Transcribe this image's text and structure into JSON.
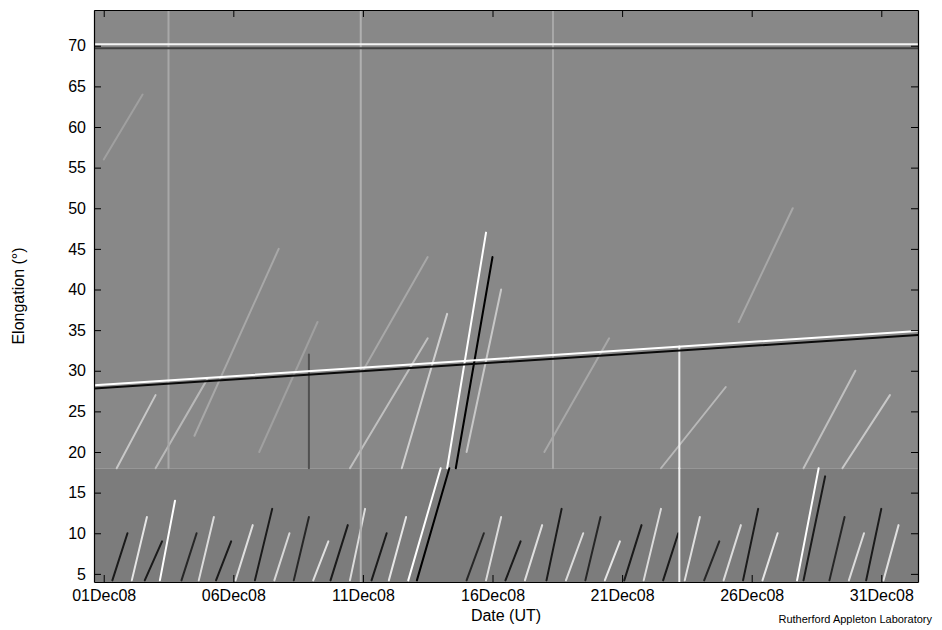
{
  "chart_data": {
    "type": "line",
    "x_label": "Date (UT)",
    "y_label": "Elongation (°)",
    "credit": "Rutherford Appleton Laboratory",
    "xlim": [
      "2008-11-30T15:00",
      "2009-01-01T10:00"
    ],
    "xticks": [
      {
        "value": "2008-12-01T00:00",
        "label": "01Dec08"
      },
      {
        "value": "2008-12-06T00:00",
        "label": "06Dec08"
      },
      {
        "value": "2008-12-11T00:00",
        "label": "11Dec08"
      },
      {
        "value": "2008-12-16T00:00",
        "label": "16Dec08"
      },
      {
        "value": "2008-12-21T00:00",
        "label": "21Dec08"
      },
      {
        "value": "2008-12-26T00:00",
        "label": "26Dec08"
      },
      {
        "value": "2008-12-31T00:00",
        "label": "31Dec08"
      }
    ],
    "ylim": [
      4,
      74.4
    ],
    "yticks": [
      5,
      10,
      15,
      20,
      25,
      30,
      35,
      40,
      45,
      50,
      55,
      60,
      65,
      70
    ],
    "regions": [
      {
        "ylim": [
          4,
          18
        ],
        "color": "#7c7c7c"
      },
      {
        "ylim": [
          18,
          74.4
        ],
        "color": "#888888"
      }
    ],
    "series": [
      {
        "x": [
          "2008-12-01T08:00",
          "2008-12-01T22:00"
        ],
        "values": [
          4.2,
          10
        ],
        "color": "#1a1a1a"
      },
      {
        "x": [
          "2008-12-02T02:00",
          "2008-12-02T16:00"
        ],
        "values": [
          4.2,
          12
        ],
        "color": "#e6e6e6"
      },
      {
        "x": [
          "2008-12-02T14:00",
          "2008-12-03T06:00"
        ],
        "values": [
          4.2,
          9
        ],
        "color": "#1a1a1a"
      },
      {
        "x": [
          "2008-12-03T04:00",
          "2008-12-03T18:00"
        ],
        "values": [
          4.2,
          14
        ],
        "color": "#ffffff"
      },
      {
        "x": [
          "2008-12-04T00:00",
          "2008-12-04T14:00"
        ],
        "values": [
          4.2,
          10
        ],
        "color": "#262626"
      },
      {
        "x": [
          "2008-12-04T16:00",
          "2008-12-05T06:00"
        ],
        "values": [
          4.2,
          12
        ],
        "color": "#dcdcdc"
      },
      {
        "x": [
          "2008-12-05T08:00",
          "2008-12-05T22:00"
        ],
        "values": [
          4.2,
          9
        ],
        "color": "#1a1a1a"
      },
      {
        "x": [
          "2008-12-06T02:00",
          "2008-12-06T18:00"
        ],
        "values": [
          4.2,
          11
        ],
        "color": "#e0e0e0"
      },
      {
        "x": [
          "2008-12-06T20:00",
          "2008-12-07T12:00"
        ],
        "values": [
          4.2,
          13
        ],
        "color": "#1a1a1a"
      },
      {
        "x": [
          "2008-12-07T14:00",
          "2008-12-08T04:00"
        ],
        "values": [
          4.2,
          10
        ],
        "color": "#d8d8d8"
      },
      {
        "x": [
          "2008-12-08T08:00",
          "2008-12-08T22:00"
        ],
        "values": [
          4.2,
          12
        ],
        "color": "#262626"
      },
      {
        "x": [
          "2008-12-09T02:00",
          "2008-12-09T16:00"
        ],
        "values": [
          4.2,
          9
        ],
        "color": "#e0e0e0"
      },
      {
        "x": [
          "2008-12-09T18:00",
          "2008-12-10T10:00"
        ],
        "values": [
          4.2,
          11
        ],
        "color": "#1a1a1a"
      },
      {
        "x": [
          "2008-12-10T12:00",
          "2008-12-11T02:00"
        ],
        "values": [
          4.2,
          13
        ],
        "color": "#dcdcdc"
      },
      {
        "x": [
          "2008-12-11T08:00",
          "2008-12-11T22:00"
        ],
        "values": [
          4.2,
          10
        ],
        "color": "#1a1a1a"
      },
      {
        "x": [
          "2008-12-12T00:00",
          "2008-12-12T16:00"
        ],
        "values": [
          4.2,
          12
        ],
        "color": "#e6e6e6"
      },
      {
        "x": [
          "2008-12-12T18:00",
          "2008-12-14T00:00"
        ],
        "values": [
          4.2,
          18
        ],
        "color": "#ffffff"
      },
      {
        "x": [
          "2008-12-13T02:00",
          "2008-12-14T08:00"
        ],
        "values": [
          4.2,
          18
        ],
        "color": "#000000"
      },
      {
        "x": [
          "2008-12-15T00:00",
          "2008-12-15T16:00"
        ],
        "values": [
          4.2,
          10
        ],
        "color": "#262626"
      },
      {
        "x": [
          "2008-12-15T18:00",
          "2008-12-16T08:00"
        ],
        "values": [
          4.2,
          12
        ],
        "color": "#dcdcdc"
      },
      {
        "x": [
          "2008-12-16T12:00",
          "2008-12-17T02:00"
        ],
        "values": [
          4.2,
          9
        ],
        "color": "#1a1a1a"
      },
      {
        "x": [
          "2008-12-17T06:00",
          "2008-12-17T22:00"
        ],
        "values": [
          4.2,
          11
        ],
        "color": "#e0e0e0"
      },
      {
        "x": [
          "2008-12-18T02:00",
          "2008-12-18T16:00"
        ],
        "values": [
          4.2,
          13
        ],
        "color": "#1a1a1a"
      },
      {
        "x": [
          "2008-12-18T20:00",
          "2008-12-19T12:00"
        ],
        "values": [
          4.2,
          10
        ],
        "color": "#dcdcdc"
      },
      {
        "x": [
          "2008-12-19T14:00",
          "2008-12-20T04:00"
        ],
        "values": [
          4.2,
          12
        ],
        "color": "#262626"
      },
      {
        "x": [
          "2008-12-20T08:00",
          "2008-12-20T22:00"
        ],
        "values": [
          4.2,
          9
        ],
        "color": "#e6e6e6"
      },
      {
        "x": [
          "2008-12-21T02:00",
          "2008-12-21T18:00"
        ],
        "values": [
          4.2,
          11
        ],
        "color": "#1a1a1a"
      },
      {
        "x": [
          "2008-12-21T20:00",
          "2008-12-22T12:00"
        ],
        "values": [
          4.2,
          13
        ],
        "color": "#dcdcdc"
      },
      {
        "x": [
          "2008-12-22T14:00",
          "2008-12-23T04:00"
        ],
        "values": [
          4.2,
          10
        ],
        "color": "#1a1a1a"
      },
      {
        "x": [
          "2008-12-23T10:00",
          "2008-12-24T00:00"
        ],
        "values": [
          4.2,
          12
        ],
        "color": "#e0e0e0"
      },
      {
        "x": [
          "2008-12-24T04:00",
          "2008-12-24T18:00"
        ],
        "values": [
          4.2,
          9
        ],
        "color": "#262626"
      },
      {
        "x": [
          "2008-12-24T22:00",
          "2008-12-25T14:00"
        ],
        "values": [
          4.2,
          11
        ],
        "color": "#dcdcdc"
      },
      {
        "x": [
          "2008-12-25T16:00",
          "2008-12-26T06:00"
        ],
        "values": [
          4.2,
          13
        ],
        "color": "#1a1a1a"
      },
      {
        "x": [
          "2008-12-26T10:00",
          "2008-12-27T00:00"
        ],
        "values": [
          4.2,
          10
        ],
        "color": "#e6e6e6"
      },
      {
        "x": [
          "2008-12-27T18:00",
          "2008-12-28T14:00"
        ],
        "values": [
          4.2,
          18
        ],
        "color": "#ffffff"
      },
      {
        "x": [
          "2008-12-28T00:00",
          "2008-12-28T20:00"
        ],
        "values": [
          4.2,
          17
        ],
        "color": "#1a1a1a"
      },
      {
        "x": [
          "2008-12-29T00:00",
          "2008-12-29T14:00"
        ],
        "values": [
          4.2,
          12
        ],
        "color": "#262626"
      },
      {
        "x": [
          "2008-12-29T18:00",
          "2008-12-30T08:00"
        ],
        "values": [
          4.2,
          10
        ],
        "color": "#dcdcdc"
      },
      {
        "x": [
          "2008-12-30T10:00",
          "2008-12-31T00:00"
        ],
        "values": [
          4.2,
          13
        ],
        "color": "#1a1a1a"
      },
      {
        "x": [
          "2008-12-31T02:00",
          "2008-12-31T16:00"
        ],
        "values": [
          4.2,
          11
        ],
        "color": "#e0e0e0"
      },
      {
        "x": [
          "2008-12-01T12:00",
          "2008-12-03T00:00"
        ],
        "values": [
          18,
          27
        ],
        "color": "#c8c8c8"
      },
      {
        "x": [
          "2008-12-03T00:00",
          "2008-12-05T00:00"
        ],
        "values": [
          18,
          29
        ],
        "color": "#b8b8b8"
      },
      {
        "x": [
          "2008-12-04T12:00",
          "2008-12-07T18:00"
        ],
        "values": [
          22,
          45
        ],
        "color": "#a8a8a8"
      },
      {
        "x": [
          "2008-12-07T00:00",
          "2008-12-09T06:00"
        ],
        "values": [
          20,
          36
        ],
        "color": "#a0a0a0"
      },
      {
        "x": [
          "2008-12-10T12:00",
          "2008-12-13T12:00"
        ],
        "values": [
          18,
          34
        ],
        "color": "#c0c0c0"
      },
      {
        "x": [
          "2008-12-11T00:00",
          "2008-12-13T12:00"
        ],
        "values": [
          30,
          44
        ],
        "color": "#a8a8a8"
      },
      {
        "x": [
          "2008-12-12T12:00",
          "2008-12-14T06:00"
        ],
        "values": [
          18,
          37
        ],
        "color": "#d0d0d0"
      },
      {
        "x": [
          "2008-12-14T06:00",
          "2008-12-15T18:00"
        ],
        "values": [
          18,
          47
        ],
        "color": "#ffffff"
      },
      {
        "x": [
          "2008-12-14T14:00",
          "2008-12-16T00:00"
        ],
        "values": [
          18,
          44
        ],
        "color": "#000000"
      },
      {
        "x": [
          "2008-12-15T00:00",
          "2008-12-16T08:00"
        ],
        "values": [
          20,
          40
        ],
        "color": "#c8c8c8"
      },
      {
        "x": [
          "2008-12-18T00:00",
          "2008-12-20T12:00"
        ],
        "values": [
          20,
          34
        ],
        "color": "#a8a8a8"
      },
      {
        "x": [
          "2008-12-22T12:00",
          "2008-12-25T00:00"
        ],
        "values": [
          18,
          28
        ],
        "color": "#b8b8b8"
      },
      {
        "x": [
          "2008-12-25T12:00",
          "2008-12-27T14:00"
        ],
        "values": [
          36,
          50
        ],
        "color": "#a8a8a8"
      },
      {
        "x": [
          "2008-12-28T00:00",
          "2008-12-30T00:00"
        ],
        "values": [
          18,
          30
        ],
        "color": "#c0c0c0"
      },
      {
        "x": [
          "2008-12-29T12:00",
          "2008-12-31T08:00"
        ],
        "values": [
          18,
          27
        ],
        "color": "#c8c8c8"
      },
      {
        "x": [
          "2008-12-01T00:00",
          "2008-12-02T12:00"
        ],
        "values": [
          56,
          64
        ],
        "color": "#a0a0a0"
      },
      {
        "x": [
          "2008-12-03T12:00",
          "2008-12-03T12:00"
        ],
        "values": [
          18,
          74.4
        ],
        "color": "#a8a8a8"
      },
      {
        "x": [
          "2008-12-08T22:00",
          "2008-12-08T22:00"
        ],
        "values": [
          18,
          32
        ],
        "color": "#505050"
      },
      {
        "x": [
          "2008-12-10T22:00",
          "2008-12-10T22:00"
        ],
        "values": [
          4,
          74.4
        ],
        "color": "#b0b0b0"
      },
      {
        "x": [
          "2008-12-18T08:00",
          "2008-12-18T08:00"
        ],
        "values": [
          18,
          74.4
        ],
        "color": "#a8a8a8"
      },
      {
        "x": [
          "2008-12-23T05:00",
          "2008-12-23T05:00"
        ],
        "values": [
          18,
          33
        ],
        "color": "#f0f0f0"
      },
      {
        "x": [
          "2008-12-23T05:00",
          "2008-12-23T05:00"
        ],
        "values": [
          4,
          18
        ],
        "color": "#f0f0f0"
      },
      {
        "x": [
          "2008-11-30T15:00",
          "2009-01-01T10:00"
        ],
        "values": [
          70.2,
          70.2
        ],
        "color": "#f5f5f5"
      },
      {
        "x": [
          "2008-11-30T15:00",
          "2009-01-01T10:00"
        ],
        "values": [
          69.7,
          69.7
        ],
        "color": "#404040"
      },
      {
        "x": [
          "2008-11-30T15:00",
          "2009-01-01T10:00"
        ],
        "values": [
          28.2,
          34.9
        ],
        "color": "#ffffff"
      },
      {
        "x": [
          "2008-11-30T15:00",
          "2009-01-01T10:00"
        ],
        "values": [
          27.8,
          34.4
        ],
        "color": "#0a0a0a"
      }
    ]
  }
}
